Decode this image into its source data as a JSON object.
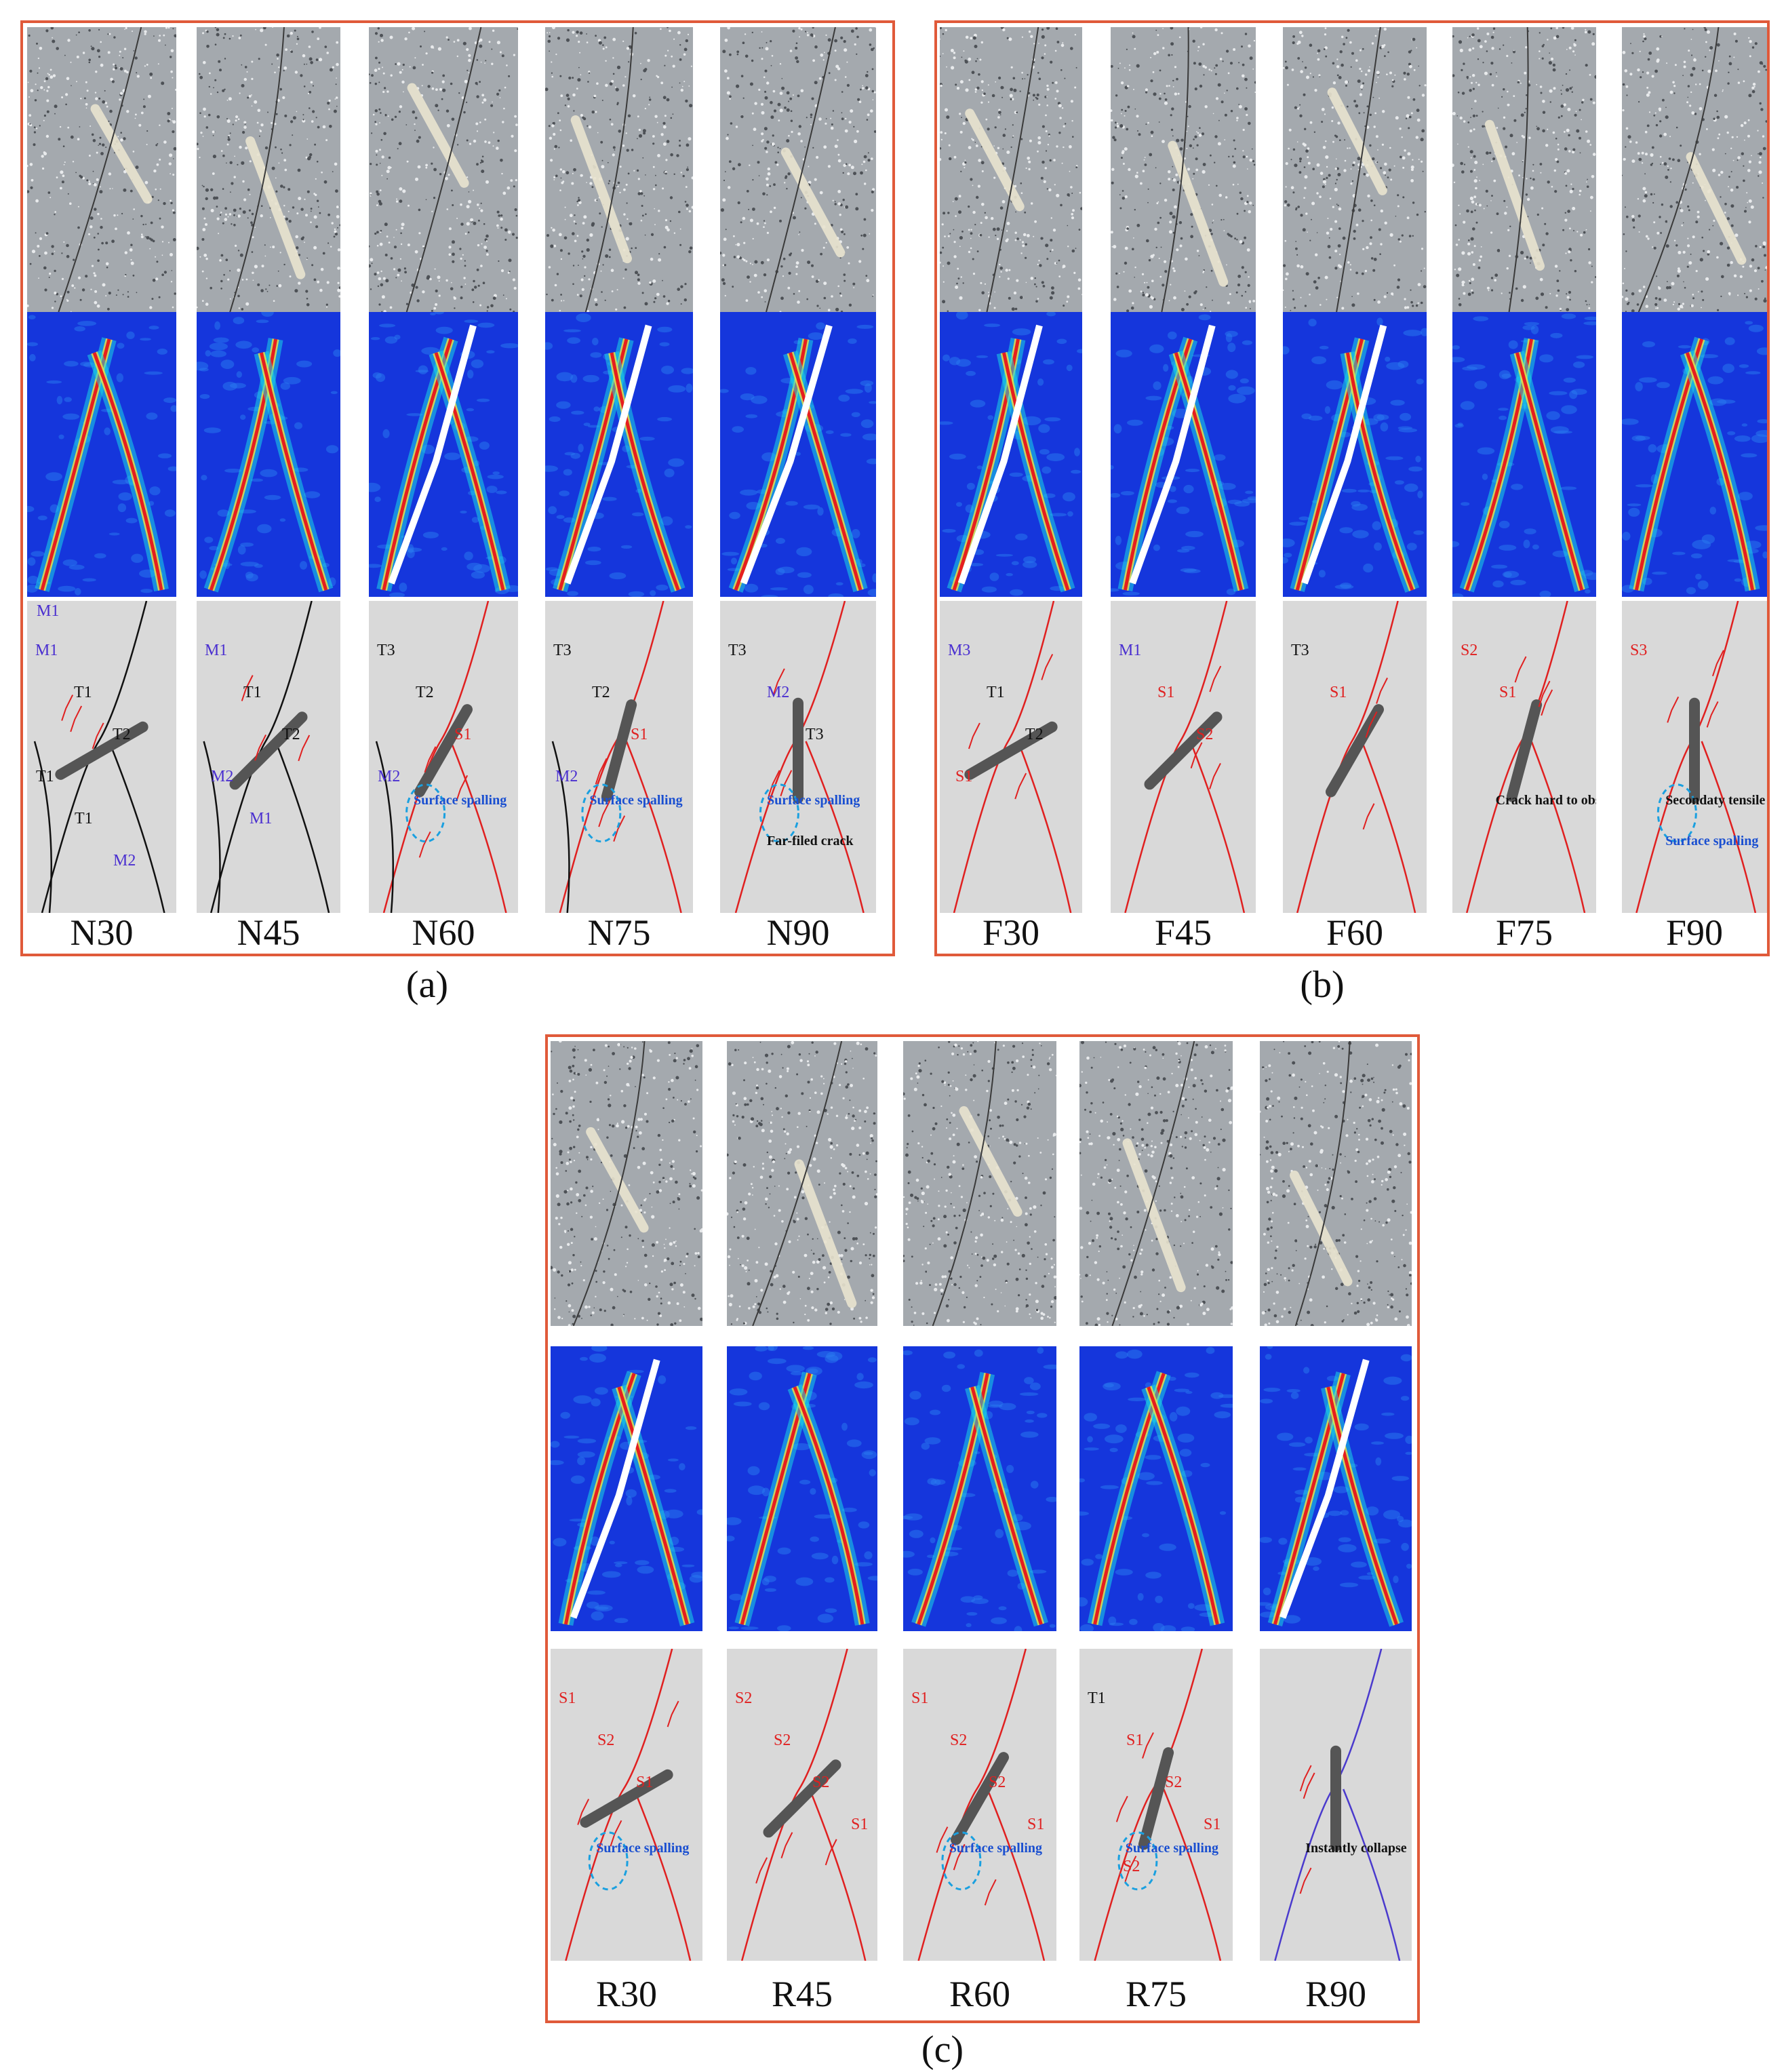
{
  "groups": [
    {
      "label": "(a)",
      "specimens": [
        {
          "name": "N30",
          "notes": [
            "M1",
            "T1",
            "T2",
            "T1",
            "T1",
            "M2",
            "M1"
          ],
          "annotations": []
        },
        {
          "name": "N45",
          "notes": [
            "M1",
            "T1",
            "T2",
            "M2",
            "M1"
          ],
          "annotations": []
        },
        {
          "name": "N60",
          "notes": [
            "T3",
            "T2",
            "S1",
            "M2"
          ],
          "annotations": [
            "Surface spalling"
          ]
        },
        {
          "name": "N75",
          "notes": [
            "T3",
            "T2",
            "S1",
            "M2"
          ],
          "annotations": [
            "Surface spalling"
          ]
        },
        {
          "name": "N90",
          "notes": [
            "T3",
            "M2",
            "T3"
          ],
          "annotations": [
            "Surface spalling",
            "Far-filed crack"
          ]
        }
      ]
    },
    {
      "label": "(b)",
      "specimens": [
        {
          "name": "F30",
          "notes": [
            "M3",
            "T1",
            "T2",
            "S1"
          ],
          "annotations": []
        },
        {
          "name": "F45",
          "notes": [
            "M1",
            "S1",
            "S2"
          ],
          "annotations": []
        },
        {
          "name": "F60",
          "notes": [
            "T3",
            "S1"
          ],
          "annotations": []
        },
        {
          "name": "F75",
          "notes": [
            "S2",
            "S1"
          ],
          "annotations": [
            "Crack hard to observe"
          ]
        },
        {
          "name": "F90",
          "notes": [
            "S3"
          ],
          "annotations": [
            "Secondaty tensile crack",
            "Surface spalling"
          ]
        }
      ]
    },
    {
      "label": "(c)",
      "specimens": [
        {
          "name": "R30",
          "notes": [
            "S1",
            "S2",
            "S1"
          ],
          "annotations": [
            "Surface spalling"
          ]
        },
        {
          "name": "R45",
          "notes": [
            "S2",
            "S2",
            "S2",
            "S1"
          ],
          "annotations": []
        },
        {
          "name": "R60",
          "notes": [
            "S1",
            "S2",
            "S2",
            "S1"
          ],
          "annotations": [
            "Surface spalling"
          ]
        },
        {
          "name": "R75",
          "notes": [
            "T1",
            "S1",
            "S2",
            "S1",
            "S2"
          ],
          "annotations": [
            "Surface spalling"
          ]
        },
        {
          "name": "R90",
          "notes": [],
          "annotations": [
            "Instantly collapse"
          ]
        }
      ]
    }
  ],
  "colors": {
    "frame": "#e05a3a",
    "crack_shear": "#e02020",
    "crack_tensile": "#111111",
    "spalling": "#1aa0e0",
    "flaw": "#555555",
    "note_blue": "#4a2fd0"
  }
}
